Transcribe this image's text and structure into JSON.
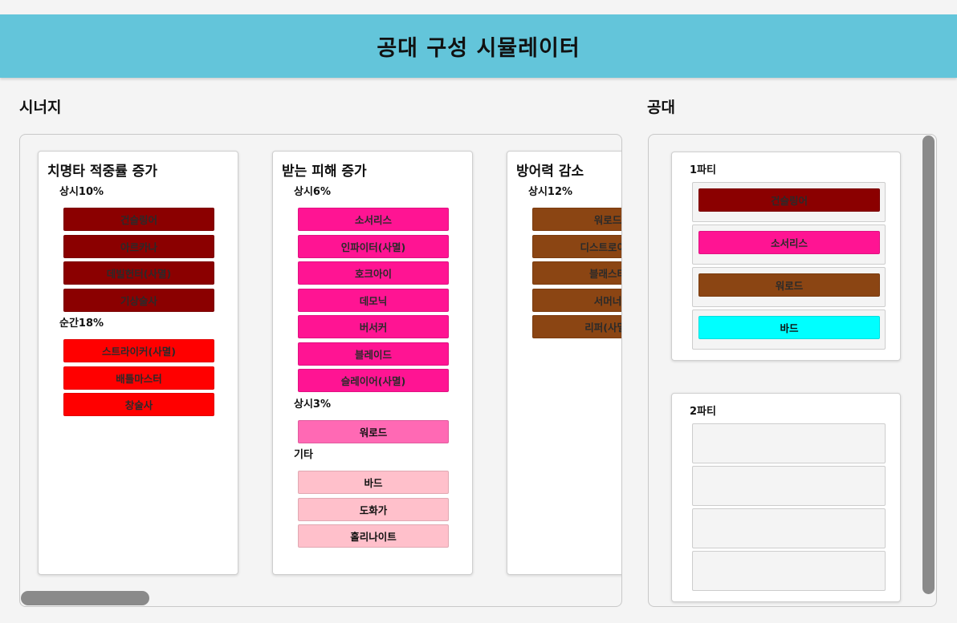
{
  "header": {
    "title": "공대 구성 시뮬레이터"
  },
  "sections": {
    "synergy": "시너지",
    "party": "공대"
  },
  "synergy_cards": [
    {
      "title": "치명타 적중률 증가",
      "groups": [
        {
          "label": "상시10%",
          "chips": [
            {
              "label": "건슬링어",
              "color": "#8b0000"
            },
            {
              "label": "아르카나",
              "color": "#8b0000"
            },
            {
              "label": "데빌헌터(사멸)",
              "color": "#8b0000"
            },
            {
              "label": "기상술사",
              "color": "#8b0000"
            }
          ]
        },
        {
          "label": "순간18%",
          "chips": [
            {
              "label": "스트라이커(사멸)",
              "color": "#ff0000"
            },
            {
              "label": "배틀마스터",
              "color": "#ff0000"
            },
            {
              "label": "창술사",
              "color": "#ff0000"
            }
          ]
        }
      ]
    },
    {
      "title": "받는 피해 증가",
      "groups": [
        {
          "label": "상시6%",
          "chips": [
            {
              "label": "소서리스",
              "color": "#ff1493"
            },
            {
              "label": "인파이터(사멸)",
              "color": "#ff1493"
            },
            {
              "label": "호크아이",
              "color": "#ff1493"
            },
            {
              "label": "데모닉",
              "color": "#ff1493"
            },
            {
              "label": "버서커",
              "color": "#ff1493"
            },
            {
              "label": "블레이드",
              "color": "#ff1493"
            },
            {
              "label": "슬레이어(사멸)",
              "color": "#ff1493"
            }
          ]
        },
        {
          "label": "상시3%",
          "chips": [
            {
              "label": "워로드",
              "color": "#ff69b4"
            }
          ]
        },
        {
          "label": "기타",
          "chips": [
            {
              "label": "바드",
              "color": "#ffc0cb"
            },
            {
              "label": "도화가",
              "color": "#ffc0cb"
            },
            {
              "label": "홀리나이트",
              "color": "#ffc0cb"
            }
          ]
        }
      ]
    },
    {
      "title": "방어력 감소",
      "groups": [
        {
          "label": "상시12%",
          "chips": [
            {
              "label": "워로드",
              "color": "#8b4513"
            },
            {
              "label": "디스트로이어",
              "color": "#8b4513"
            },
            {
              "label": "블래스터",
              "color": "#8b4513"
            },
            {
              "label": "서머너",
              "color": "#8b4513"
            },
            {
              "label": "리퍼(사멸)",
              "color": "#8b4513"
            }
          ]
        }
      ]
    }
  ],
  "parties": [
    {
      "title": "1파티",
      "slots": [
        {
          "label": "건슬링어",
          "color": "#8b0000"
        },
        {
          "label": "소서리스",
          "color": "#ff1493"
        },
        {
          "label": "워로드",
          "color": "#8b4513"
        },
        {
          "label": "바드",
          "color": "#00ffff"
        }
      ]
    },
    {
      "title": "2파티",
      "slots": [
        null,
        null,
        null,
        null
      ]
    }
  ]
}
